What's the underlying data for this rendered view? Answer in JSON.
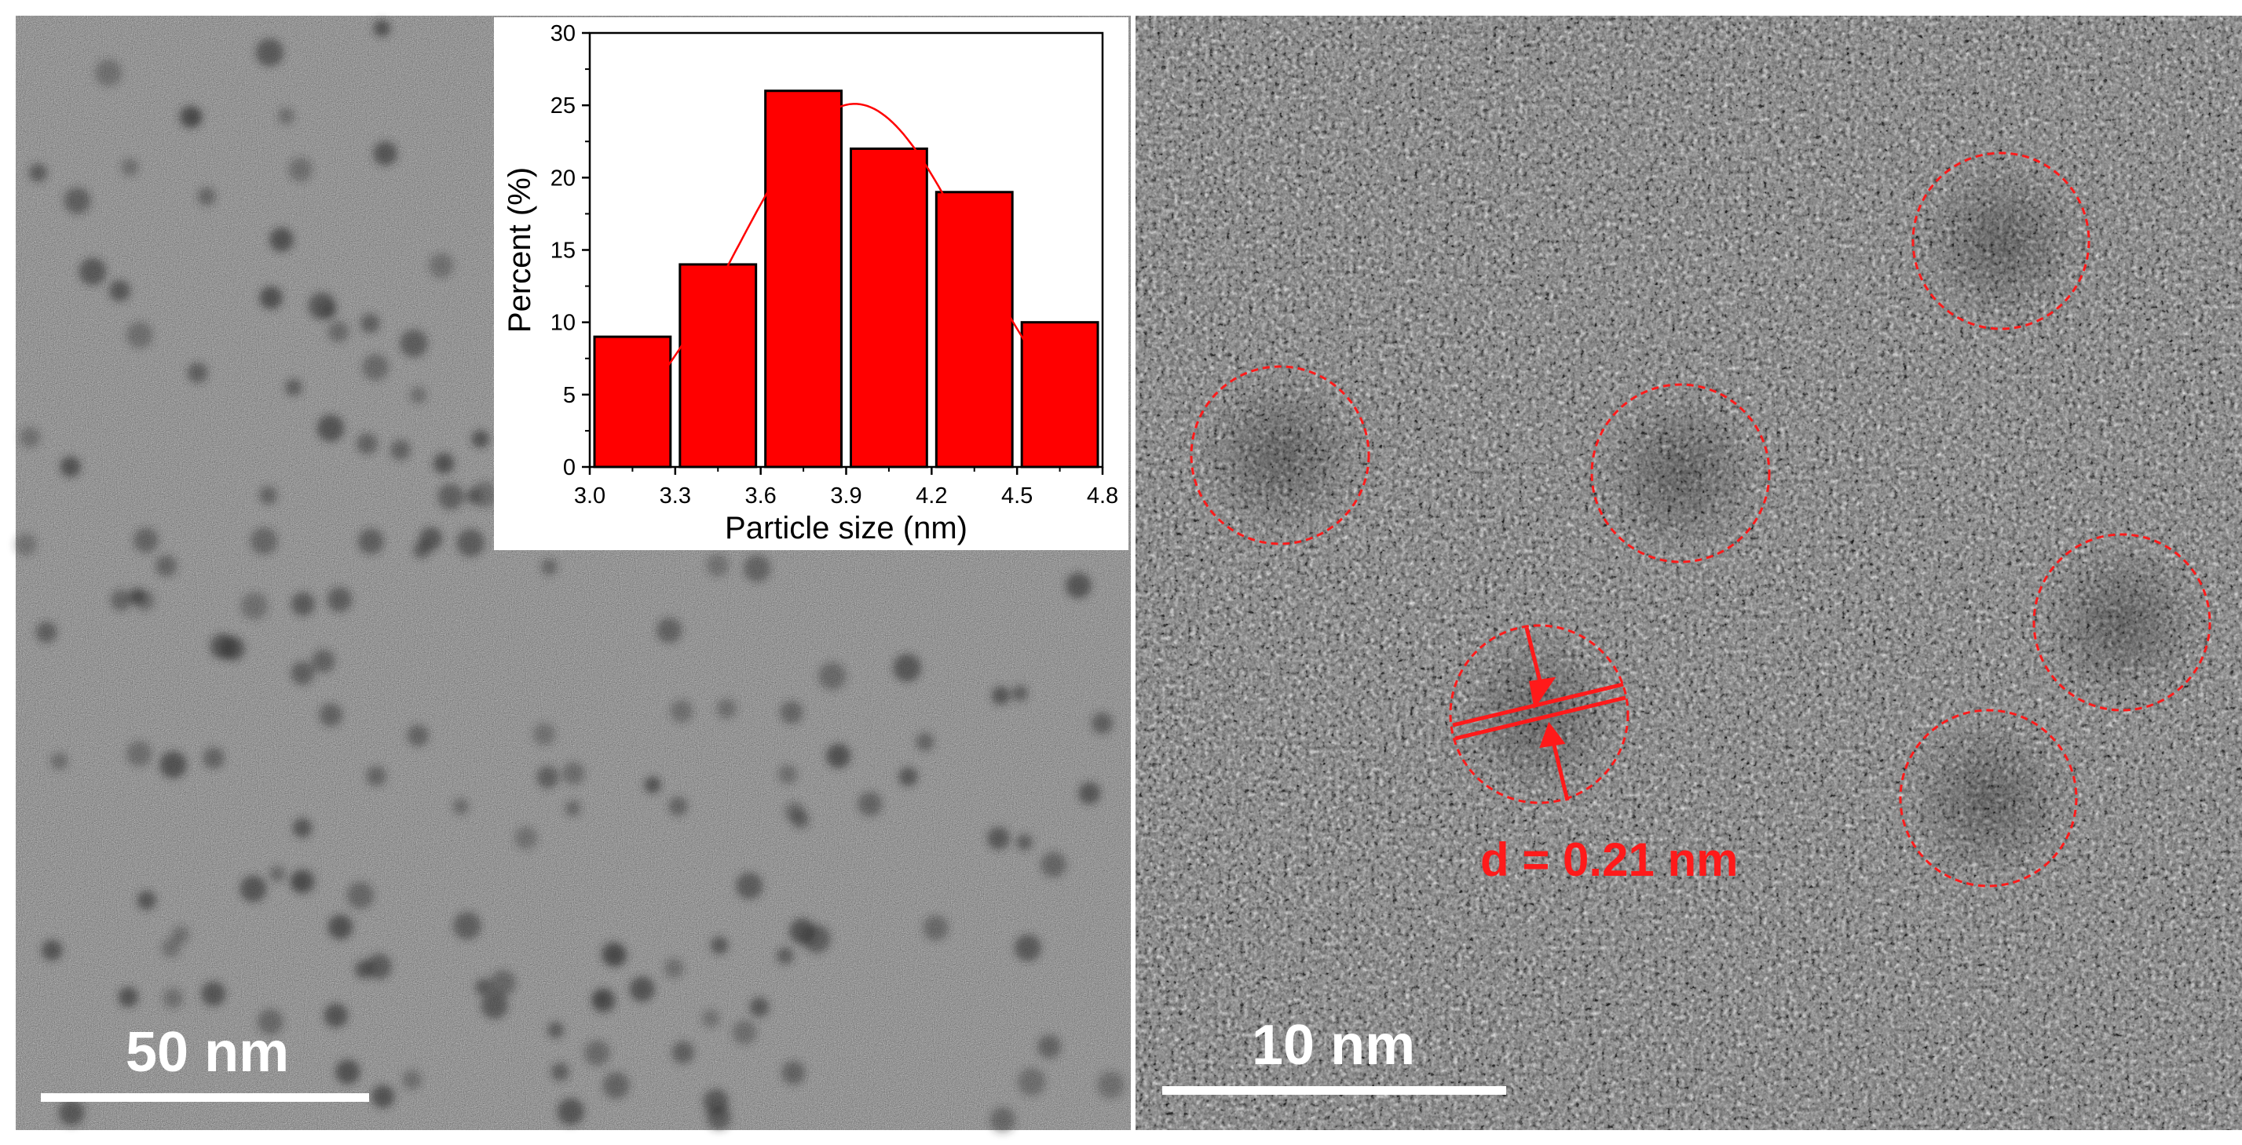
{
  "left_panel": {
    "scale_bar_label": "50 nm",
    "inset_chart": {
      "chart_data": {
        "type": "bar",
        "categories": [
          "3.15",
          "3.45",
          "3.75",
          "4.05",
          "4.35",
          "4.65"
        ],
        "bin_edges": [
          3.0,
          3.3,
          3.6,
          3.9,
          4.2,
          4.5,
          4.8
        ],
        "values": [
          9,
          14,
          26,
          22,
          19,
          10
        ],
        "xlabel": "Particle size (nm)",
        "ylabel": "Percent (%)",
        "xlim": [
          3.0,
          4.8
        ],
        "ylim": [
          0,
          30
        ],
        "xticks": [
          "3.0",
          "3.3",
          "3.6",
          "3.9",
          "4.2",
          "4.5",
          "4.8"
        ],
        "yticks": [
          "0",
          "5",
          "10",
          "15",
          "20",
          "25",
          "30"
        ],
        "fit_curve": {
          "type": "gaussian",
          "peak_x": 3.93,
          "peak_y": 25.1,
          "sigma": 0.41,
          "x_range": [
            3.15,
            4.65
          ]
        },
        "bar_color": "#ff0000",
        "curve_color": "#ff0000"
      }
    }
  },
  "right_panel": {
    "scale_bar_label": "10 nm",
    "d_spacing_label": "d = 0.21 nm",
    "circle_color": "#ff1a1a"
  }
}
